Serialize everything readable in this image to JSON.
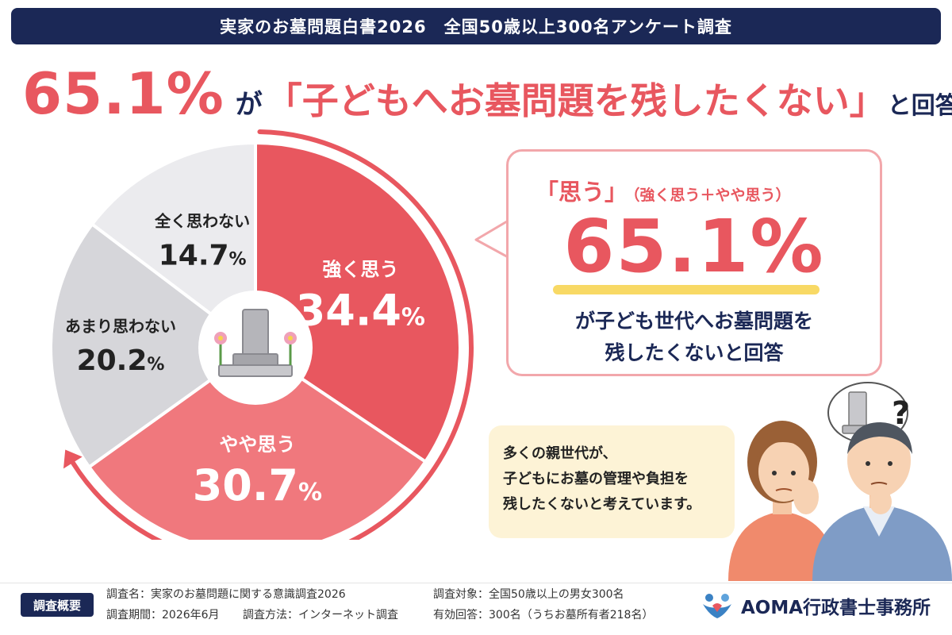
{
  "banner": {
    "title": "実家のお墓問題白書2026　全国50歳以上300名アンケート調査"
  },
  "headline": {
    "percent": "65.1%",
    "ga": "が",
    "quote": "「子どもへお墓問題を残したくない」",
    "tail": "と回答"
  },
  "chart_data": {
    "type": "pie",
    "title": "",
    "slices": [
      {
        "label": "強く思う",
        "value": 34.4,
        "display": "34.4",
        "unit": "%",
        "color": "#e8575f"
      },
      {
        "label": "やや思う",
        "value": 30.7,
        "display": "30.7",
        "unit": "%",
        "color": "#f0787d"
      },
      {
        "label": "あまり思わない",
        "value": 20.2,
        "display": "20.2",
        "unit": "%",
        "color": "#d6d6da"
      },
      {
        "label": "全く思わない",
        "value": 14.7,
        "display": "14.7",
        "unit": "%",
        "color": "#ebebee"
      }
    ],
    "start_angle": "12 o'clock",
    "direction": "clockwise"
  },
  "callout": {
    "omou": "「思う」",
    "sub": "（強く思う＋やや思う）",
    "percent": "65.1%",
    "desc_line1": "が子ども世代へお墓問題を",
    "desc_line2": "残したくないと回答"
  },
  "note": {
    "line1": "多くの親世代が、",
    "line2": "子どもにお墓の管理や負担を",
    "line3": "残したくないと考えています。"
  },
  "illustration": {
    "question_mark": "?"
  },
  "footer": {
    "badge": "調査概要",
    "survey_name": "調査名：実家のお墓問題に関する意識調査2026",
    "survey_period": "調査期間：2026年6月",
    "survey_method": "調査方法：インターネット調査",
    "survey_target": "調査対象：全国50歳以上の男女300名",
    "valid_answers": "有効回答：300名（うちお墓所有者218名）"
  },
  "logo": {
    "text": "AOMA行政書士事務所",
    "color": "#3b82c4"
  }
}
